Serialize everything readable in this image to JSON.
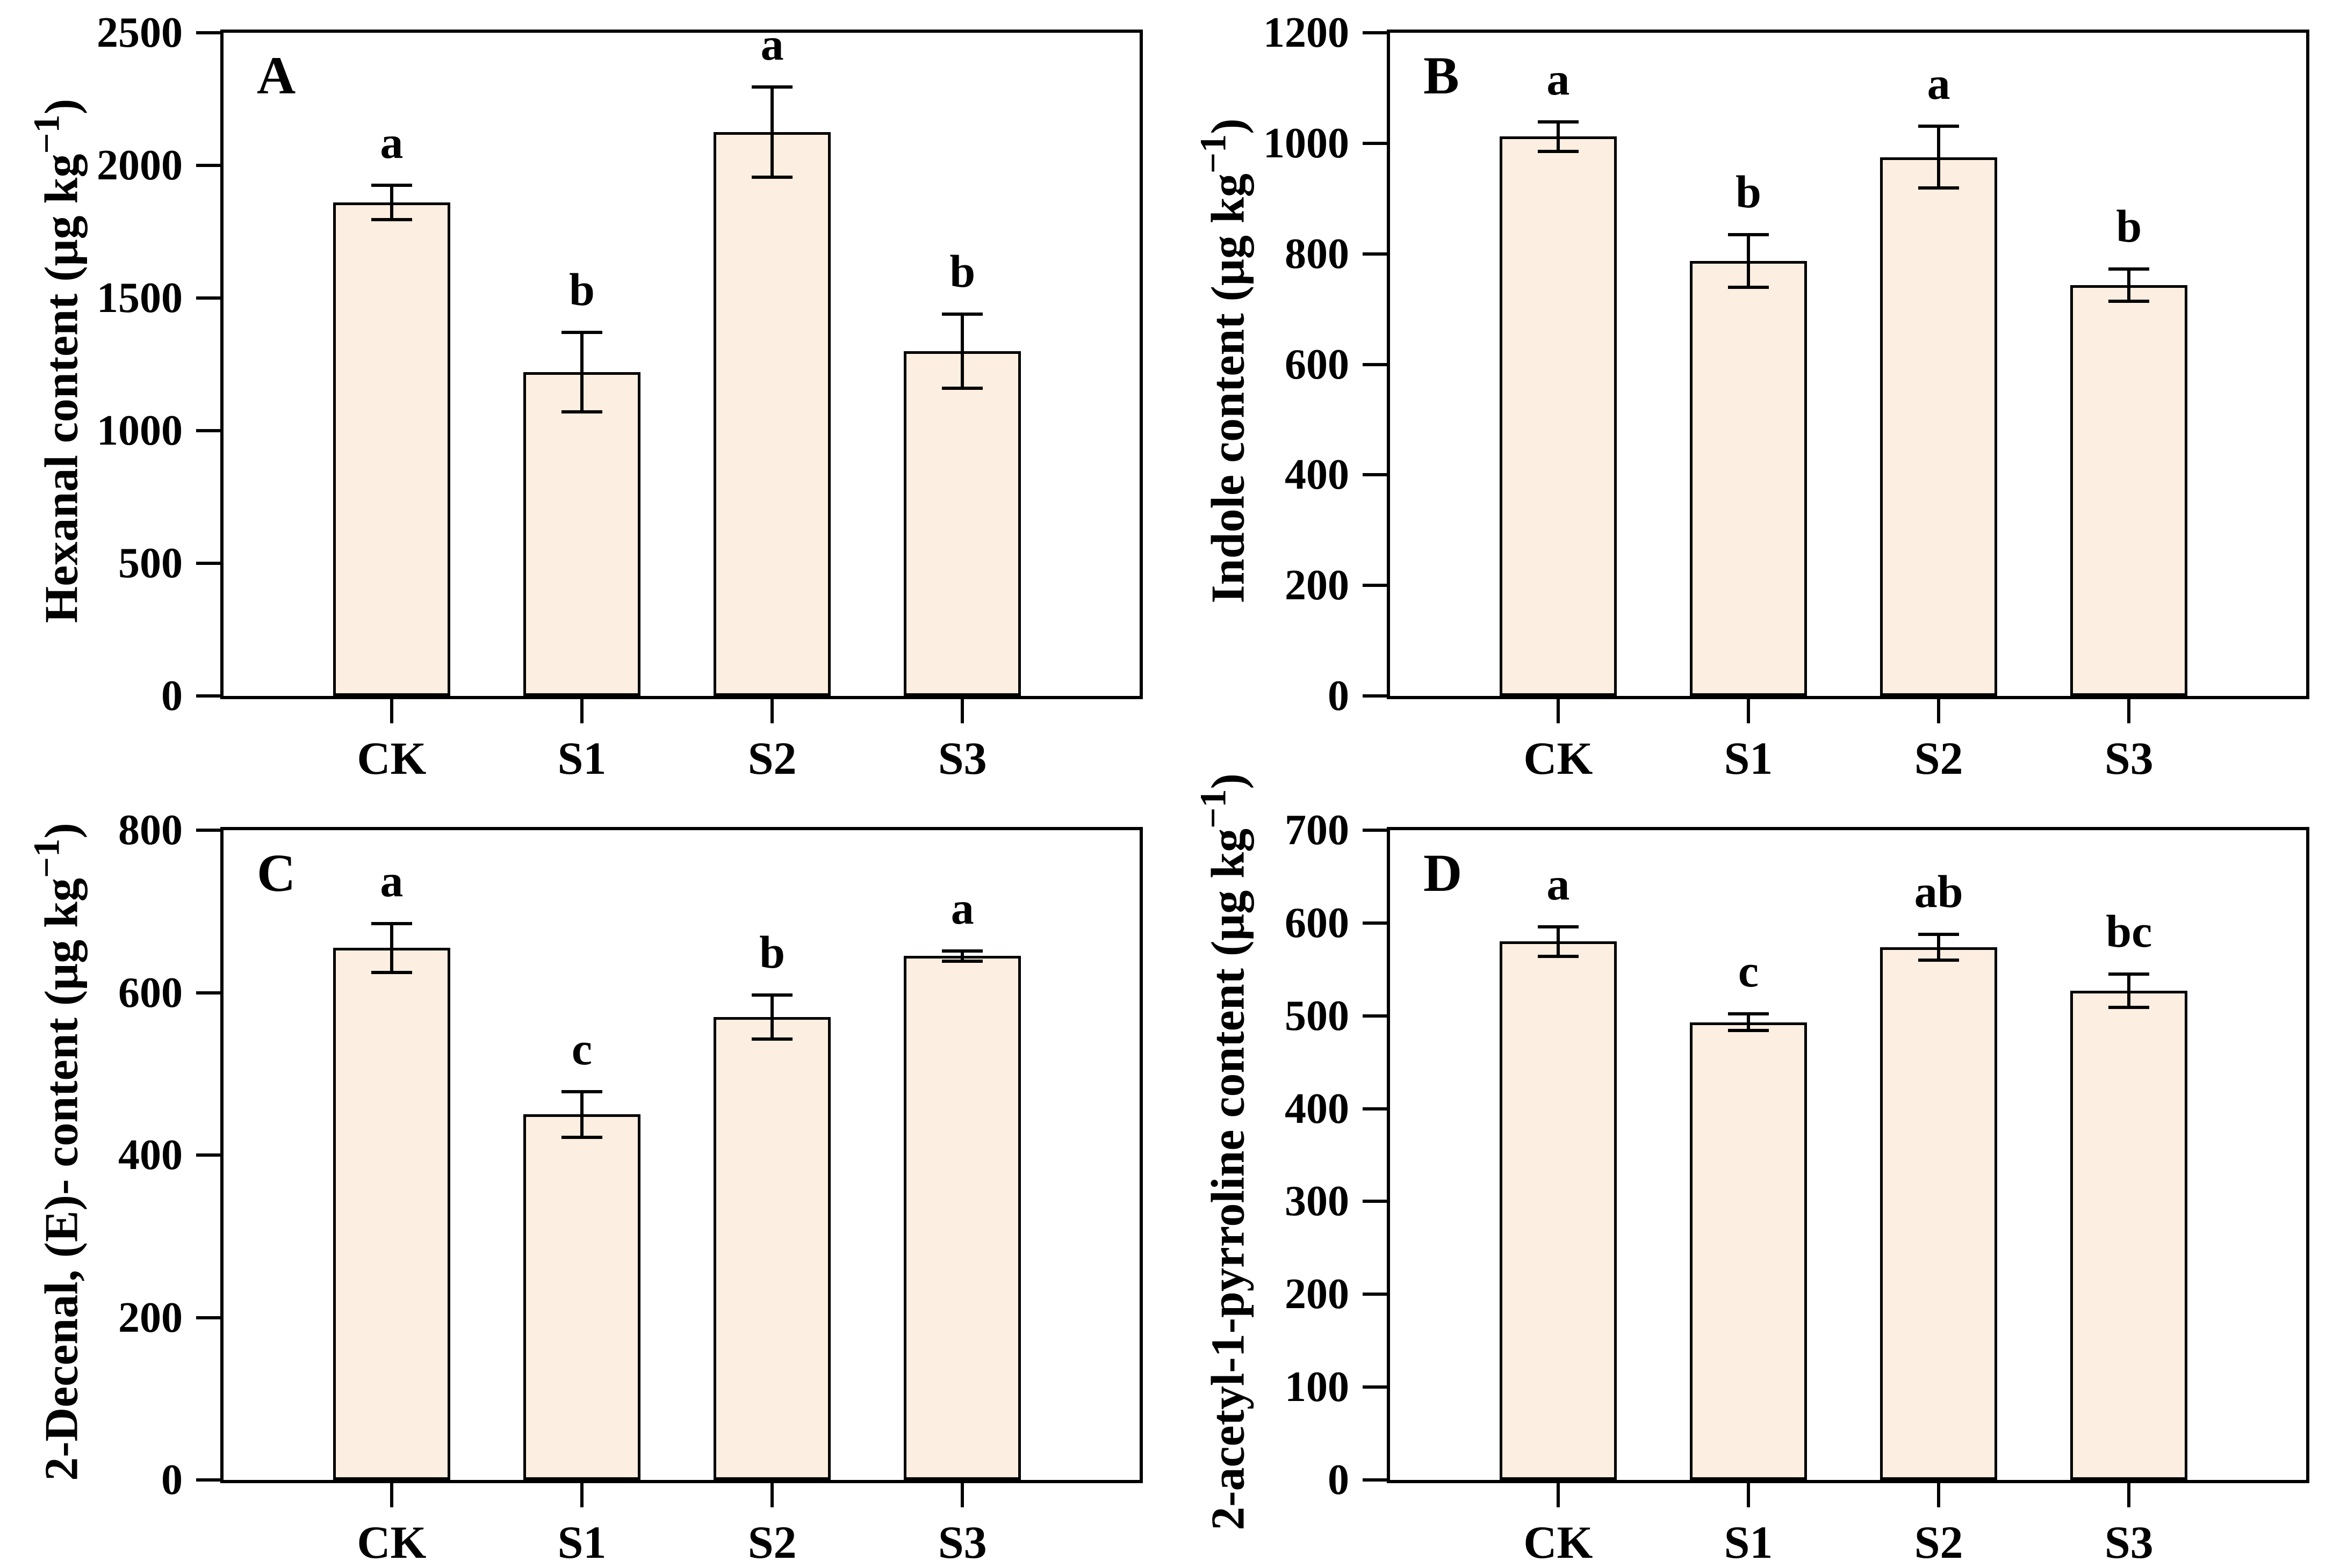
{
  "figure": {
    "background_color": "#ffffff",
    "bar_fill_color": "#FCEEE0",
    "bar_border_color": "#000000",
    "text_color": "#000000"
  },
  "chart_data": [
    {
      "type": "bar",
      "panel_label": "A",
      "ylabel": "Hexanal content (μg kg−1)",
      "ylabel_prefix": "Hexanal content (μg kg",
      "ylabel_sup": "−1",
      "ylabel_suffix": ")",
      "xlabel": "",
      "categories": [
        "CK",
        "S1",
        "S2",
        "S3"
      ],
      "values": [
        1860,
        1220,
        2125,
        1300
      ],
      "errors": [
        65,
        150,
        170,
        140
      ],
      "sig_letters": [
        "a",
        "b",
        "a",
        "b"
      ],
      "ylim": [
        0,
        2500
      ],
      "yticks": [
        0,
        500,
        1000,
        1500,
        2000,
        2500
      ],
      "grid": "off",
      "legend": "none"
    },
    {
      "type": "bar",
      "panel_label": "B",
      "ylabel": "Indole content (μg kg−1)",
      "ylabel_prefix": "Indole content (μg kg",
      "ylabel_sup": "−1",
      "ylabel_suffix": ")",
      "xlabel": "",
      "categories": [
        "CK",
        "S1",
        "S2",
        "S3"
      ],
      "values": [
        1012,
        787,
        975,
        743
      ],
      "errors": [
        27,
        48,
        56,
        29
      ],
      "sig_letters": [
        "a",
        "b",
        "a",
        "b"
      ],
      "ylim": [
        0,
        1200
      ],
      "yticks": [
        0,
        200,
        400,
        600,
        800,
        1000,
        1200
      ],
      "grid": "off",
      "legend": "none"
    },
    {
      "type": "bar",
      "panel_label": "C",
      "ylabel": "2-Decenal, (E)- content (μg kg−1)",
      "ylabel_prefix": "2-Decenal, (E)- content (μg kg",
      "ylabel_sup": "−1",
      "ylabel_suffix": ")",
      "xlabel": "",
      "categories": [
        "CK",
        "S1",
        "S2",
        "S3"
      ],
      "values": [
        655,
        450,
        570,
        645
      ],
      "errors": [
        30,
        28,
        27,
        6
      ],
      "sig_letters": [
        "a",
        "c",
        "b",
        "a"
      ],
      "ylim": [
        0,
        800
      ],
      "yticks": [
        0,
        200,
        400,
        600,
        800
      ],
      "grid": "off",
      "legend": "none"
    },
    {
      "type": "bar",
      "panel_label": "D",
      "ylabel": "2-acetyl-1-pyrroline content (μg kg−1)",
      "ylabel_prefix": "2-acetyl-1-pyrroline content (μg kg",
      "ylabel_sup": "−1",
      "ylabel_suffix": ")",
      "xlabel": "",
      "categories": [
        "CK",
        "S1",
        "S2",
        "S3"
      ],
      "values": [
        580,
        493,
        574,
        527
      ],
      "errors": [
        16,
        9,
        14,
        18
      ],
      "sig_letters": [
        "a",
        "c",
        "ab",
        "bc"
      ],
      "ylim": [
        0,
        700
      ],
      "yticks": [
        0,
        100,
        200,
        300,
        400,
        500,
        600,
        700
      ],
      "grid": "off",
      "legend": "none"
    }
  ]
}
